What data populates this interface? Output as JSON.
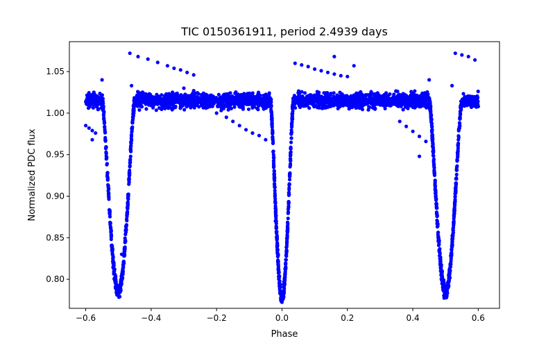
{
  "chart_data": {
    "type": "scatter",
    "title": "TIC 0150361911, period 2.4939 days",
    "xlabel": "Phase",
    "ylabel": "Normalized PDC flux",
    "xlim": [
      -0.65,
      0.665
    ],
    "ylim": [
      0.765,
      1.086
    ],
    "xticks": [
      -0.6,
      -0.4,
      -0.2,
      0.0,
      0.2,
      0.4,
      0.6
    ],
    "xtick_labels": [
      "−0.6",
      "−0.4",
      "−0.2",
      "0.0",
      "0.2",
      "0.4",
      "0.6"
    ],
    "yticks": [
      0.8,
      0.85,
      0.9,
      0.95,
      1.0,
      1.05
    ],
    "ytick_labels": [
      "0.80",
      "0.85",
      "0.90",
      "0.95",
      "1.00",
      "1.05"
    ],
    "grid": false,
    "legend": "none",
    "marker_color": "#0000ff",
    "series": [
      {
        "baseline_flux": 1.015,
        "baseline_scatter": 0.013,
        "phase_range": [
          -0.6,
          0.6
        ],
        "eclipses": [
          {
            "center": -0.5,
            "min_flux": 0.785,
            "half_width": 0.05
          },
          {
            "center": 0.0,
            "min_flux": 0.778,
            "half_width": 0.035
          },
          {
            "center": 0.5,
            "min_flux": 0.785,
            "half_width": 0.05
          }
        ],
        "outlier_tracks": [
          {
            "x": [
              -0.465,
              -0.44,
              -0.41,
              -0.38,
              -0.35,
              -0.33,
              -0.31,
              -0.29,
              -0.27
            ],
            "y": [
              1.072,
              1.068,
              1.065,
              1.061,
              1.057,
              1.054,
              1.052,
              1.049,
              1.046
            ]
          },
          {
            "x": [
              -0.3,
              -0.27,
              -0.24,
              -0.21,
              -0.18,
              -0.16,
              -0.14,
              -0.12
            ],
            "y": [
              1.03,
              1.027,
              1.024,
              1.02,
              1.017,
              1.015,
              1.012,
              1.01
            ]
          },
          {
            "x": [
              -0.2,
              -0.17,
              -0.15,
              -0.13,
              -0.11,
              -0.09,
              -0.07,
              -0.05
            ],
            "y": [
              1.0,
              0.995,
              0.99,
              0.985,
              0.98,
              0.976,
              0.973,
              0.968
            ]
          },
          {
            "x": [
              0.04,
              0.06,
              0.08,
              0.1,
              0.12,
              0.14,
              0.16,
              0.18,
              0.2
            ],
            "y": [
              1.06,
              1.058,
              1.056,
              1.053,
              1.051,
              1.049,
              1.047,
              1.045,
              1.044
            ]
          },
          {
            "x": [
              0.36,
              0.38,
              0.4,
              0.42,
              0.44
            ],
            "y": [
              0.99,
              0.984,
              0.978,
              0.972,
              0.966
            ]
          },
          {
            "x": [
              0.53,
              0.55,
              0.57,
              0.59
            ],
            "y": [
              1.072,
              1.07,
              1.068,
              1.064
            ]
          },
          {
            "x": [
              -0.6,
              -0.59,
              -0.58,
              -0.57
            ],
            "y": [
              0.985,
              0.982,
              0.979,
              0.976
            ]
          }
        ],
        "outliers": [
          {
            "x": 0.16,
            "y": 1.068
          },
          {
            "x": 0.22,
            "y": 1.057
          },
          {
            "x": -0.55,
            "y": 1.04
          },
          {
            "x": 0.45,
            "y": 1.04
          },
          {
            "x": -0.46,
            "y": 1.033
          },
          {
            "x": 0.52,
            "y": 1.033
          },
          {
            "x": 0.42,
            "y": 0.948
          },
          {
            "x": -0.58,
            "y": 0.968
          },
          {
            "x": -0.49,
            "y": 0.83
          },
          {
            "x": 0.02,
            "y": 0.893
          },
          {
            "x": -0.02,
            "y": 0.87
          }
        ]
      }
    ]
  }
}
